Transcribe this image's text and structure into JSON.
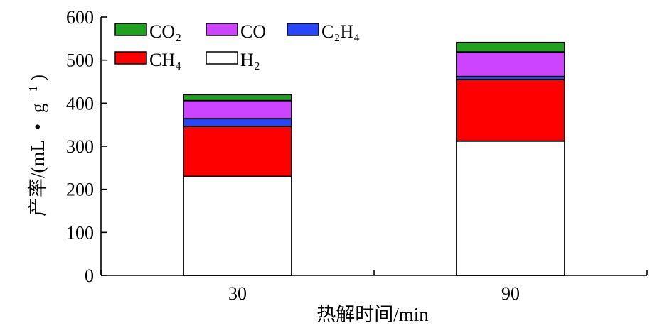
{
  "chart_data": {
    "type": "bar",
    "stacked": true,
    "categories": [
      "30",
      "90"
    ],
    "series": [
      {
        "name": "H₂",
        "color": "#ffffff",
        "values": [
          230,
          312
        ]
      },
      {
        "name": "CH₄",
        "color": "#ff0000",
        "values": [
          116,
          143
        ]
      },
      {
        "name": "C₂H₄",
        "color": "#2747ff",
        "values": [
          18,
          7
        ]
      },
      {
        "name": "CO",
        "color": "#cc44ff",
        "values": [
          42,
          57
        ]
      },
      {
        "name": "CO₂",
        "color": "#1fa31f",
        "values": [
          14,
          22
        ]
      }
    ],
    "legend_order": [
      "CO₂",
      "CO",
      "C₂H₄",
      "CH₄",
      "H₂"
    ],
    "xlabel": "热解时间/min",
    "ylabel_main": "产率/(mL",
    "ylabel_dot": "•",
    "ylabel_g": "g",
    "ylabel_sup": "−1",
    "ylabel_close": ")",
    "ylim": [
      0,
      600
    ],
    "yticks": [
      0,
      100,
      200,
      300,
      400,
      500,
      600
    ],
    "grid": false,
    "legend_position": "top-left"
  }
}
